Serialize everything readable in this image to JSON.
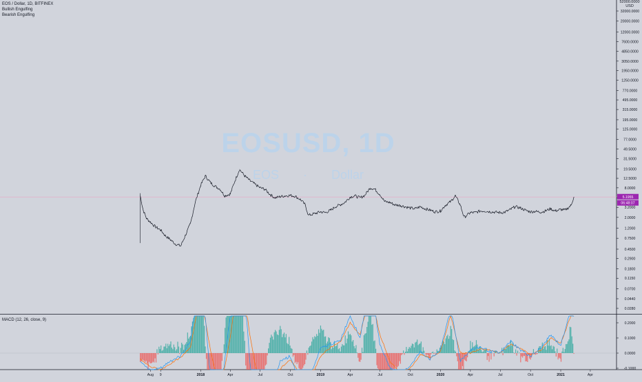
{
  "header": {
    "symbol_line": "EOS / Dollar, 1D, BITFINEX",
    "indicators": [
      "Bullish Engulfing",
      "Bearish Engulfing"
    ]
  },
  "watermark": {
    "main": "EOSUSD, 1D",
    "sub": "EOS · Dollar"
  },
  "price_axis": {
    "currency": [
      "52000.0000",
      "USD"
    ],
    "ticks": [
      "32000.0000",
      "20000.0000",
      "12000.0000",
      "7600.0000",
      "4850.0000",
      "3050.0000",
      "1950.0000",
      "1250.0000",
      "770.0000",
      "495.0000",
      "315.0000",
      "195.0000",
      "125.0000",
      "77.0000",
      "49.5000",
      "31.5000",
      "19.5000",
      "12.5000",
      "8.0000",
      "5.0000",
      "3.2000",
      "2.0000",
      "1.2000",
      "0.7500",
      "0.4500",
      "0.2900",
      "0.1800",
      "0.1150",
      "0.0700",
      "0.0440",
      "0.0280"
    ],
    "tick_values": [
      32000,
      20000,
      12000,
      7600,
      4850,
      3050,
      1950,
      1250,
      770,
      495,
      315,
      195,
      125,
      77,
      49.5,
      31.5,
      19.5,
      12.5,
      8,
      5,
      3.2,
      2,
      1.2,
      0.75,
      0.45,
      0.29,
      0.18,
      0.115,
      0.07,
      0.044,
      0.028
    ],
    "last_price_label": "5.1955",
    "countdown_label": "06:48:07",
    "last_price_color": "#9c27b0"
  },
  "time_axis": {
    "labels": [
      "Aug",
      "9",
      "2018",
      "Apr",
      "Jul",
      "Oct",
      "2019",
      "Apr",
      "Jul",
      "Oct",
      "2020",
      "Apr",
      "Jul",
      "Oct",
      "2021",
      "Apr"
    ],
    "bold": [
      "2018",
      "2019",
      "2020",
      "2021"
    ]
  },
  "macd_panel": {
    "label": "MACD (12, 26, close, 9)",
    "ticks": [
      "0.2000",
      "0.1000",
      "0.0000",
      "-0.1000"
    ],
    "tick_values": [
      0.2,
      0.1,
      0.0,
      -0.1
    ],
    "macd_color": "#2196f3",
    "signal_color": "#ff6d00",
    "hist_up_color": "#26a69a",
    "hist_down_color": "#ef5350"
  },
  "chart_data": {
    "type": "line",
    "title": "EOS / Dollar, 1D, BITFINEX",
    "scale": "log",
    "x": [
      "2017-07-01",
      "2017-07-05",
      "2017-07-10",
      "2017-07-20",
      "2017-08-01",
      "2017-08-15",
      "2017-09-01",
      "2017-09-15",
      "2017-10-01",
      "2017-10-15",
      "2017-11-01",
      "2017-11-15",
      "2017-12-01",
      "2017-12-15",
      "2018-01-01",
      "2018-01-15",
      "2018-02-01",
      "2018-02-15",
      "2018-03-01",
      "2018-03-15",
      "2018-04-01",
      "2018-04-15",
      "2018-04-29",
      "2018-05-15",
      "2018-06-01",
      "2018-06-15",
      "2018-07-01",
      "2018-07-15",
      "2018-08-01",
      "2018-08-15",
      "2018-09-01",
      "2018-09-15",
      "2018-10-01",
      "2018-10-15",
      "2018-11-01",
      "2018-11-15",
      "2018-11-25",
      "2018-12-15",
      "2019-01-01",
      "2019-01-15",
      "2019-02-01",
      "2019-02-15",
      "2019-03-01",
      "2019-03-15",
      "2019-04-01",
      "2019-04-15",
      "2019-05-01",
      "2019-05-15",
      "2019-06-01",
      "2019-06-15",
      "2019-07-01",
      "2019-07-15",
      "2019-08-01",
      "2019-08-15",
      "2019-09-01",
      "2019-09-15",
      "2019-10-01",
      "2019-10-15",
      "2019-11-01",
      "2019-11-15",
      "2019-12-01",
      "2019-12-15",
      "2020-01-01",
      "2020-01-15",
      "2020-02-01",
      "2020-02-15",
      "2020-03-01",
      "2020-03-13",
      "2020-04-01",
      "2020-04-15",
      "2020-05-01",
      "2020-05-15",
      "2020-06-01",
      "2020-06-15",
      "2020-07-01",
      "2020-07-15",
      "2020-08-01",
      "2020-08-15",
      "2020-09-01",
      "2020-09-15",
      "2020-10-01",
      "2020-10-15",
      "2020-11-01",
      "2020-11-15",
      "2020-12-01",
      "2020-12-15",
      "2021-01-01",
      "2021-01-15",
      "2021-02-01",
      "2021-02-10"
    ],
    "values": [
      5.5,
      4.0,
      2.8,
      1.9,
      1.6,
      1.3,
      1.1,
      0.85,
      0.7,
      0.58,
      0.52,
      0.85,
      1.5,
      4.0,
      9.0,
      14.0,
      10.0,
      8.5,
      7.5,
      5.5,
      6.0,
      11.0,
      19.0,
      14.0,
      11.0,
      9.5,
      8.0,
      7.5,
      5.8,
      5.0,
      5.3,
      5.5,
      5.6,
      5.4,
      4.6,
      3.6,
      2.2,
      2.4,
      2.6,
      2.5,
      2.8,
      3.3,
      3.6,
      4.0,
      5.2,
      5.5,
      5.0,
      5.6,
      8.0,
      7.5,
      5.8,
      4.2,
      4.0,
      3.6,
      3.5,
      3.3,
      3.1,
      3.0,
      3.3,
      3.0,
      2.8,
      2.6,
      2.7,
      3.5,
      4.2,
      5.5,
      3.6,
      2.0,
      2.5,
      2.5,
      2.7,
      2.7,
      2.6,
      2.55,
      2.5,
      2.55,
      2.9,
      3.3,
      3.1,
      2.8,
      2.6,
      2.65,
      2.55,
      2.7,
      3.0,
      2.7,
      2.9,
      2.8,
      3.5,
      5.2
    ],
    "xlabel": "",
    "ylabel": "USD",
    "ylim": [
      0.028,
      52000
    ],
    "horizontal_line": 5.1955,
    "grid": false,
    "legend": "top-left",
    "macd": {
      "x": [
        "2017-07-01",
        "2017-08-01",
        "2017-09-01",
        "2017-10-01",
        "2017-11-01",
        "2017-12-01",
        "2018-01-01",
        "2018-02-01",
        "2018-03-01",
        "2018-04-01",
        "2018-05-01",
        "2018-06-01",
        "2018-07-01",
        "2018-08-01",
        "2018-09-01",
        "2018-10-01",
        "2018-11-01",
        "2018-12-01",
        "2019-01-01",
        "2019-02-01",
        "2019-03-01",
        "2019-04-01",
        "2019-05-01",
        "2019-06-01",
        "2019-07-01",
        "2019-08-01",
        "2019-09-01",
        "2019-10-01",
        "2019-11-01",
        "2019-12-01",
        "2020-01-01",
        "2020-02-01",
        "2020-03-01",
        "2020-04-01",
        "2020-05-01",
        "2020-06-01",
        "2020-07-01",
        "2020-08-01",
        "2020-09-01",
        "2020-10-01",
        "2020-11-01",
        "2020-12-01",
        "2021-01-01",
        "2021-02-01",
        "2021-02-10"
      ],
      "macd": [
        -0.06,
        -0.12,
        -0.1,
        -0.05,
        -0.02,
        0.08,
        0.6,
        -0.2,
        -0.3,
        0.25,
        0.8,
        -0.1,
        -0.35,
        -0.25,
        -0.05,
        -0.02,
        -0.2,
        -0.15,
        0.03,
        0.06,
        0.08,
        0.25,
        0.1,
        0.5,
        0.05,
        -0.1,
        -0.15,
        -0.08,
        0.01,
        -0.04,
        0.02,
        0.3,
        -0.05,
        0.02,
        0.04,
        0.01,
        0.0,
        0.08,
        0.02,
        -0.02,
        0.03,
        0.12,
        0.05,
        0.3,
        0.25
      ],
      "signal": [
        -0.04,
        -0.09,
        -0.11,
        -0.07,
        -0.03,
        0.04,
        0.4,
        0.0,
        -0.25,
        0.1,
        0.6,
        0.1,
        -0.25,
        -0.28,
        -0.1,
        -0.04,
        -0.15,
        -0.17,
        -0.02,
        0.04,
        0.07,
        0.2,
        0.12,
        0.4,
        0.12,
        -0.06,
        -0.13,
        -0.1,
        -0.01,
        -0.03,
        0.01,
        0.25,
        0.0,
        0.0,
        0.03,
        0.02,
        0.0,
        0.06,
        0.03,
        -0.01,
        0.02,
        0.1,
        0.06,
        0.25,
        0.24
      ]
    }
  }
}
